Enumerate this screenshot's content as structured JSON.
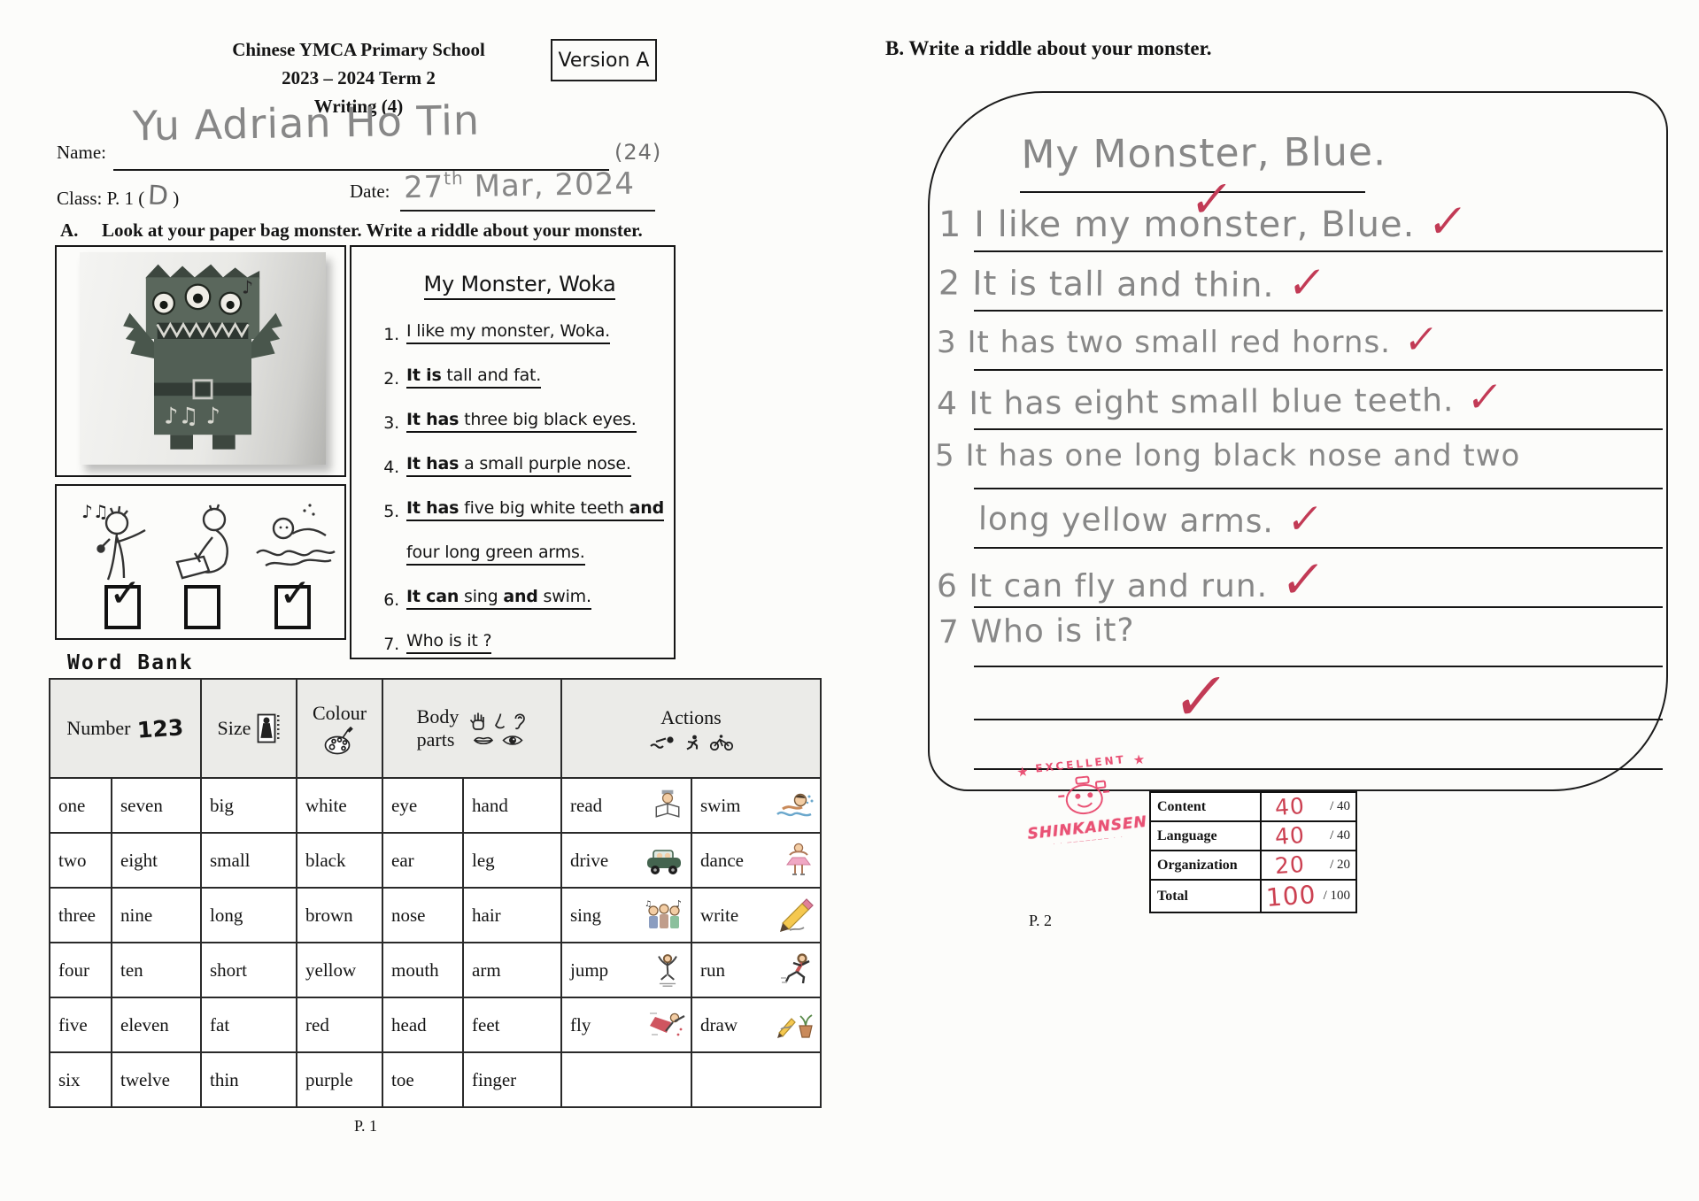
{
  "page1": {
    "header": {
      "school": "Chinese YMCA Primary School",
      "term": "2023 – 2024 Term 2",
      "subject": "Writing (4)",
      "version": "Version A"
    },
    "fields": {
      "name_label": "Name:",
      "name_value": "Yu Adrian Ho Tin",
      "name_score": "(24)",
      "class_prefix": "Class: P. 1 (",
      "class_value": "D",
      "class_suffix": ")",
      "date_label": "Date:",
      "date_day": "27",
      "date_ordinal": "th",
      "date_rest": "Mar, 2024"
    },
    "section_a": {
      "label": "A.",
      "instruction": "Look at your paper bag monster. Write a riddle about your monster."
    },
    "riddle": {
      "title": "My Monster, Woka",
      "lines": [
        {
          "num": "1.",
          "segments": [
            {
              "t": "I like my monster, Woka.",
              "b": false
            }
          ]
        },
        {
          "num": "2.",
          "segments": [
            {
              "t": "It is",
              "b": true
            },
            {
              "t": " tall and fat.",
              "b": false
            }
          ]
        },
        {
          "num": "3.",
          "segments": [
            {
              "t": "It has",
              "b": true
            },
            {
              "t": " three big black eyes.",
              "b": false
            }
          ]
        },
        {
          "num": "4.",
          "segments": [
            {
              "t": "It has",
              "b": true
            },
            {
              "t": " a small purple nose.",
              "b": false
            }
          ]
        },
        {
          "num": "5.",
          "segments": [
            {
              "t": "It has",
              "b": true
            },
            {
              "t": " five big white teeth ",
              "b": false
            },
            {
              "t": "and",
              "b": true
            }
          ]
        },
        {
          "num": "",
          "segments": [
            {
              "t": "four long green arms.",
              "b": false
            }
          ]
        },
        {
          "num": "6.",
          "segments": [
            {
              "t": "It can",
              "b": true
            },
            {
              "t": " sing ",
              "b": false
            },
            {
              "t": "and",
              "b": true
            },
            {
              "t": " swim.",
              "b": false
            }
          ]
        },
        {
          "num": "7.",
          "segments": [
            {
              "t": "Who is it ?",
              "b": false
            }
          ]
        }
      ]
    },
    "abilities": {
      "items": [
        {
          "icon": "singing-child",
          "mark": "✓"
        },
        {
          "icon": "reading-writing-child",
          "mark": ""
        },
        {
          "icon": "swimming-child",
          "mark": "✓"
        }
      ]
    },
    "word_bank": {
      "title": "Word Bank",
      "headers": {
        "number": "Number",
        "number_icon": "123",
        "size": "Size",
        "colour": "Colour",
        "body_parts_line1": "Body",
        "body_parts_line2": "parts",
        "actions": "Actions"
      },
      "rows": [
        [
          "one",
          "seven",
          "big",
          "white",
          "eye",
          "hand"
        ],
        [
          "two",
          "eight",
          "small",
          "black",
          "ear",
          "leg"
        ],
        [
          "three",
          "nine",
          "long",
          "brown",
          "nose",
          "hair"
        ],
        [
          "four",
          "ten",
          "short",
          "yellow",
          "mouth",
          "arm"
        ],
        [
          "five",
          "eleven",
          "fat",
          "red",
          "head",
          "feet"
        ],
        [
          "six",
          "twelve",
          "thin",
          "purple",
          "toe",
          "finger"
        ]
      ],
      "action_rows": [
        [
          "read",
          "swim"
        ],
        [
          "drive",
          "dance"
        ],
        [
          "sing",
          "write"
        ],
        [
          "jump",
          "run"
        ],
        [
          "fly",
          "draw"
        ],
        [
          "",
          ""
        ]
      ]
    },
    "page_num": "P. 1"
  },
  "page2": {
    "heading": "B. Write a riddle about your monster.",
    "writing": {
      "title": {
        "text": "My Monster, Blue.",
        "check": "✓"
      },
      "lines": [
        {
          "text": "1 I like my monster, Blue.",
          "check": "✓"
        },
        {
          "text": "2 It is tall and thin.",
          "check": "✓"
        },
        {
          "text": "3 It has two small red horns.",
          "check": "✓"
        },
        {
          "text": "4 It has eight small blue teeth.",
          "check": "✓"
        },
        {
          "text": "5 It has one long black nose and two",
          "check": ""
        },
        {
          "text": "long yellow arms.",
          "check": "✓"
        },
        {
          "text": "6 It can fly and run.",
          "check": "✓"
        },
        {
          "text": "7 Who is it?",
          "check": ""
        }
      ],
      "big_check": "✓"
    },
    "stamp": {
      "top": "EXCELLENT",
      "name": "SHINKANSEN"
    },
    "score_table": {
      "rows": [
        {
          "label": "Content",
          "score": "40",
          "max": "/ 40"
        },
        {
          "label": "Language",
          "score": "40",
          "max": "/ 40"
        },
        {
          "label": "Organization",
          "score": "20",
          "max": "/ 20"
        },
        {
          "label": "Total",
          "score": "100",
          "max": "/ 100"
        }
      ]
    },
    "page_num": "P. 2"
  }
}
